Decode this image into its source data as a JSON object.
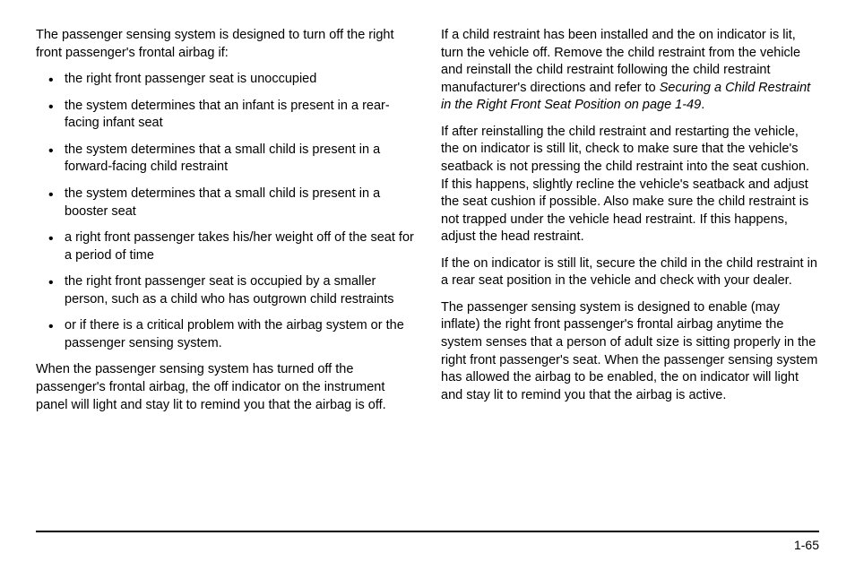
{
  "left": {
    "intro": "The passenger sensing system is designed to turn off the right front passenger's frontal airbag if:",
    "bullets": [
      "the right front passenger seat is unoccupied",
      "the system determines that an infant is present in a rear-facing infant seat",
      "the system determines that a small child is present in a forward-facing child restraint",
      "the system determines that a small child is present in a booster seat",
      "a right front passenger takes his/her weight off of the seat for a period of time",
      "the right front passenger seat is occupied by a smaller person, such as a child who has outgrown child restraints",
      "or if there is a critical problem with the airbag system or the passenger sensing system."
    ],
    "after": "When the passenger sensing system has turned off the passenger's frontal airbag, the off indicator on the instrument panel will light and stay lit to remind you that the airbag is off."
  },
  "right": {
    "p1a": "If a child restraint has been installed and the on indicator is lit, turn the vehicle off. Remove the child restraint from the vehicle and reinstall the child restraint following the child restraint manufacturer's directions and refer to ",
    "p1_italic": "Securing a Child Restraint in the Right Front Seat Position on page 1-49",
    "p1b": ".",
    "p2": "If after reinstalling the child restraint and restarting the vehicle, the on indicator is still lit, check to make sure that the vehicle's seatback is not pressing the child restraint into the seat cushion. If this happens, slightly recline the vehicle's seatback and adjust the seat cushion if possible. Also make sure the child restraint is not trapped under the vehicle head restraint. If this happens, adjust the head restraint.",
    "p3": "If the on indicator is still lit, secure the child in the child restraint in a rear seat position in the vehicle and check with your dealer.",
    "p4": "The passenger sensing system is designed to enable (may inflate) the right front passenger's frontal airbag anytime the system senses that a person of adult size is sitting properly in the right front passenger's seat. When the passenger sensing system has allowed the airbag to be enabled, the on indicator will light and stay lit to remind you that the airbag is active."
  },
  "page_number": "1-65"
}
